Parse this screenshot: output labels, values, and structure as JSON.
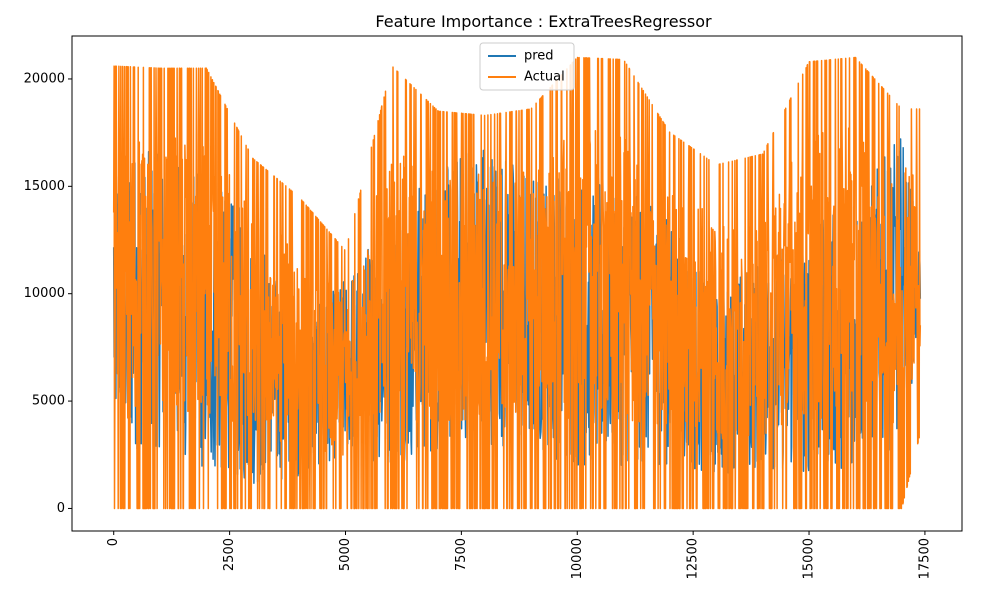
{
  "chart_data": {
    "type": "line",
    "title": "Feature Importance : ExtraTreesRegressor",
    "xlabel": "",
    "ylabel": "",
    "xlim": [
      -900,
      18300
    ],
    "ylim": [
      -1050,
      22000
    ],
    "x_ticks": [
      0,
      2500,
      5000,
      7500,
      10000,
      12500,
      15000,
      17500
    ],
    "x_tick_labels": [
      "0",
      "2500",
      "5000",
      "7500",
      "10000",
      "12500",
      "15000",
      "17500"
    ],
    "x_tick_rotation": 90,
    "y_ticks": [
      0,
      5000,
      10000,
      15000,
      20000
    ],
    "y_tick_labels": [
      "0",
      "5000",
      "10000",
      "15000",
      "20000"
    ],
    "grid": false,
    "legend_position": "top-center",
    "series": [
      {
        "name": "pred",
        "color": "#1f77b4",
        "note_envelope": {
          "x": [
            0,
            1000,
            2000,
            3000,
            4000,
            5000,
            6000,
            7000,
            8000,
            9000,
            10000,
            11000,
            12000,
            13000,
            14000,
            15000,
            16000,
            17000,
            17400
          ],
          "min": [
            2600,
            2800,
            1500,
            1000,
            1500,
            2500,
            2000,
            2500,
            3000,
            2700,
            1800,
            2000,
            2000,
            1500,
            1800,
            1500,
            2000,
            3000,
            8200
          ],
          "max": [
            17200,
            16500,
            15500,
            13500,
            8500,
            10800,
            14000,
            16000,
            17500,
            15700,
            15800,
            15000,
            13500,
            10000,
            12000,
            13000,
            14500,
            17500,
            12400
          ]
        }
      },
      {
        "name": "Actual",
        "color": "#ff7f0e",
        "note_envelope": {
          "x": [
            0,
            1000,
            2000,
            3000,
            4000,
            5000,
            6000,
            7000,
            8000,
            9000,
            10000,
            11000,
            12000,
            13000,
            14000,
            15000,
            16000,
            17000,
            17400
          ],
          "min": [
            0,
            0,
            0,
            0,
            0,
            0,
            0,
            0,
            0,
            0,
            0,
            0,
            0,
            0,
            0,
            0,
            0,
            0,
            3500
          ],
          "max": [
            20600,
            20500,
            20500,
            16300,
            14500,
            12000,
            20600,
            18500,
            18300,
            18600,
            21000,
            20900,
            17500,
            16000,
            16500,
            20800,
            21000,
            18600,
            18600
          ]
        }
      }
    ]
  }
}
